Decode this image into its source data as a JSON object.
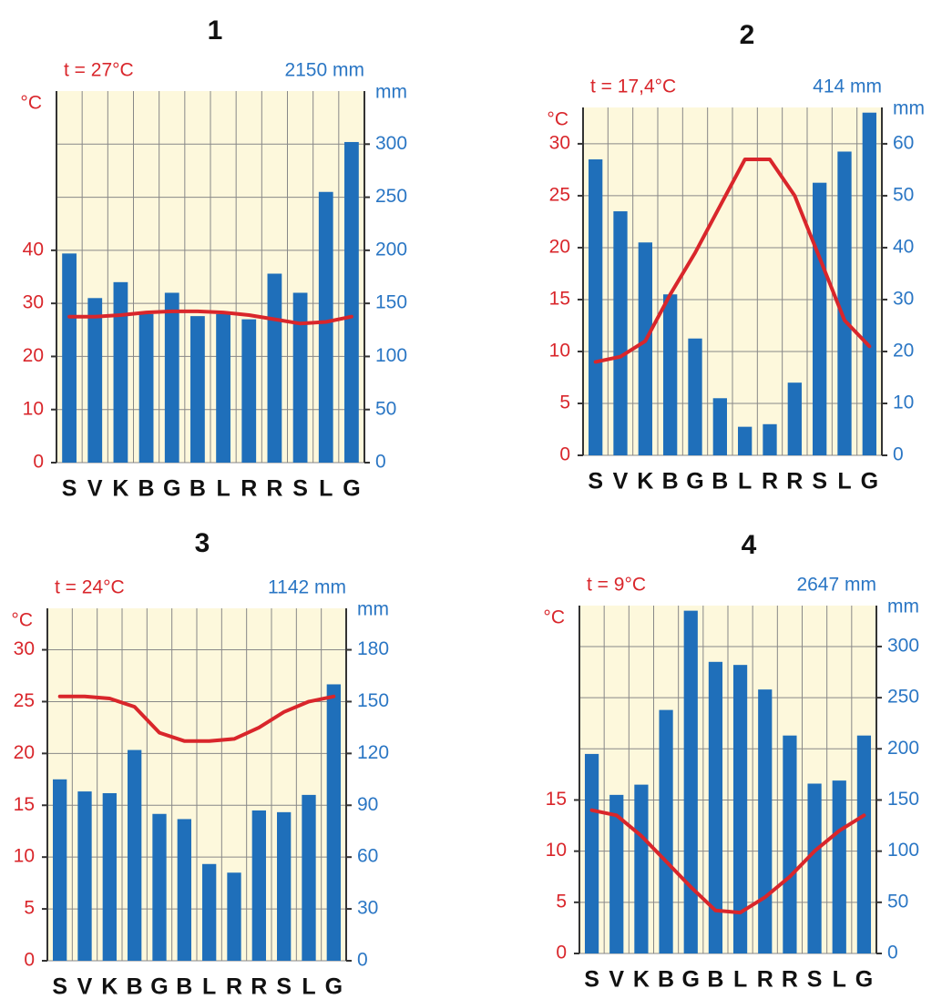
{
  "chart_data": [
    {
      "type": "bar",
      "title": "1",
      "temp_label": "t = 27°C",
      "precip_label": "2150 mm",
      "y_label": "°C",
      "y2_label": "mm",
      "categories": [
        "S",
        "V",
        "K",
        "B",
        "G",
        "B",
        "L",
        "R",
        "R",
        "S",
        "L",
        "G"
      ],
      "ylim": [
        0,
        70
      ],
      "yticks": [
        0,
        10,
        20,
        30,
        40
      ],
      "y2lim": [
        0,
        350
      ],
      "y2ticks": [
        0,
        50,
        100,
        150,
        200,
        250,
        300
      ],
      "grid": true,
      "series": [
        {
          "type": "bar",
          "axis": "y2",
          "color": "#1f6fba",
          "values": [
            197,
            155,
            170,
            140,
            160,
            138,
            140,
            135,
            178,
            160,
            255,
            302
          ]
        },
        {
          "type": "line",
          "color": "#d9262b",
          "values": [
            27.5,
            27.5,
            27.8,
            28.3,
            28.5,
            28.5,
            28.3,
            27.8,
            27,
            26.2,
            26.5,
            27.5
          ]
        }
      ]
    },
    {
      "type": "bar",
      "title": "2",
      "temp_label": "t = 17,4°C",
      "precip_label": "414 mm",
      "y_label": "°C",
      "y2_label": "mm",
      "categories": [
        "S",
        "V",
        "K",
        "B",
        "G",
        "B",
        "L",
        "R",
        "R",
        "S",
        "L",
        "G"
      ],
      "ylim": [
        0,
        33.5
      ],
      "yticks": [
        0,
        5,
        10,
        15,
        20,
        25,
        30
      ],
      "y2lim": [
        0,
        67
      ],
      "y2ticks": [
        0,
        10,
        20,
        30,
        40,
        50,
        60
      ],
      "grid": true,
      "series": [
        {
          "type": "bar",
          "axis": "y2",
          "color": "#1f6fba",
          "values": [
            57,
            47,
            41,
            31,
            22.5,
            11,
            5.5,
            6,
            14,
            52.5,
            58.5,
            66
          ]
        },
        {
          "type": "line",
          "color": "#d9262b",
          "values": [
            9,
            9.5,
            11,
            15.5,
            19.5,
            24,
            28.5,
            28.5,
            25,
            19,
            13,
            10.5
          ]
        }
      ]
    },
    {
      "type": "bar",
      "title": "3",
      "temp_label": "t = 24°C",
      "precip_label": "1142 mm",
      "y_label": "°C",
      "y2_label": "mm",
      "categories": [
        "S",
        "V",
        "K",
        "B",
        "G",
        "B",
        "L",
        "R",
        "R",
        "S",
        "L",
        "G"
      ],
      "ylim": [
        0,
        34
      ],
      "yticks": [
        0,
        5,
        10,
        15,
        20,
        25,
        30
      ],
      "y2lim": [
        0,
        204
      ],
      "y2ticks": [
        0,
        30,
        60,
        90,
        120,
        150,
        180
      ],
      "grid": true,
      "series": [
        {
          "type": "bar",
          "axis": "y2",
          "color": "#1f6fba",
          "values": [
            105,
            98,
            97,
            122,
            85,
            82,
            56,
            51,
            87,
            86,
            96,
            160
          ]
        },
        {
          "type": "line",
          "color": "#d9262b",
          "values": [
            25.5,
            25.5,
            25.3,
            24.5,
            22,
            21.2,
            21.2,
            21.4,
            22.5,
            24,
            25,
            25.5
          ]
        }
      ]
    },
    {
      "type": "bar",
      "title": "4",
      "temp_label": "t = 9°C",
      "precip_label": "2647 mm",
      "y_label": "°C",
      "y2_label": "mm",
      "categories": [
        "S",
        "V",
        "K",
        "B",
        "G",
        "B",
        "L",
        "R",
        "R",
        "S",
        "L",
        "G"
      ],
      "ylim": [
        0,
        34
      ],
      "yticks": [
        0,
        5,
        10,
        15
      ],
      "y2lim": [
        0,
        340
      ],
      "y2ticks": [
        0,
        50,
        100,
        150,
        200,
        250,
        300
      ],
      "grid": true,
      "series": [
        {
          "type": "bar",
          "axis": "y2",
          "color": "#1f6fba",
          "values": [
            195,
            155,
            165,
            238,
            335,
            285,
            282,
            258,
            213,
            166,
            169,
            213
          ]
        },
        {
          "type": "line",
          "color": "#d9262b",
          "values": [
            14,
            13.5,
            11.5,
            9,
            6.5,
            4.2,
            4,
            5.5,
            7.5,
            10,
            12,
            13.5
          ]
        }
      ]
    }
  ]
}
